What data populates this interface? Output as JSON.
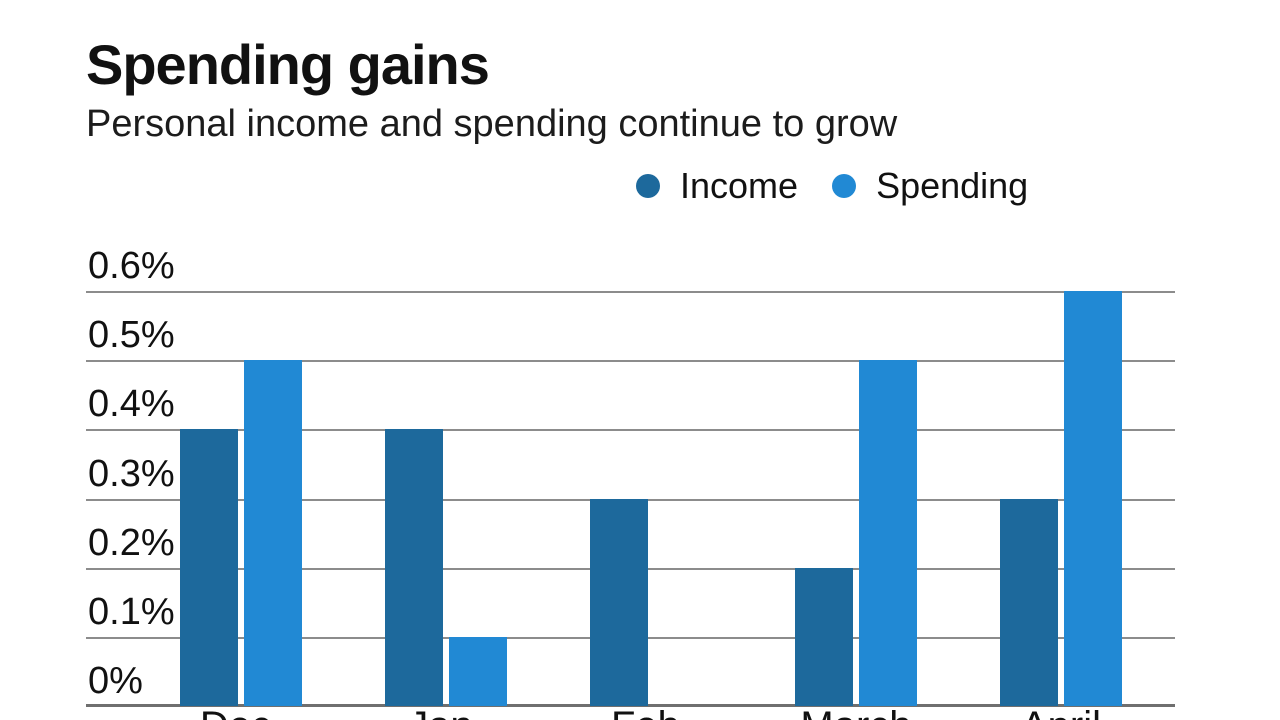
{
  "header": {
    "title": "Spending gains",
    "subtitle": "Personal income and spending continue to grow"
  },
  "legend": [
    {
      "label": "Income",
      "color": "#1d699c"
    },
    {
      "label": "Spending",
      "color": "#2189d4"
    }
  ],
  "colors": {
    "income": "#1d699c",
    "spending": "#2189d4",
    "gridline": "#8c8c8c",
    "axis_line": "#6f6f6f",
    "text": "#111111",
    "background": "#ffffff"
  },
  "chart_data": {
    "type": "bar",
    "title": "Spending gains",
    "subtitle": "Personal income and spending continue to grow",
    "categories": [
      "Dec.",
      "Jan.",
      "Feb.",
      "March",
      "April"
    ],
    "series": [
      {
        "name": "Income",
        "color": "#1d699c",
        "values": [
          0.4,
          0.4,
          0.3,
          0.2,
          0.3
        ]
      },
      {
        "name": "Spending",
        "color": "#2189d4",
        "values": [
          0.5,
          0.1,
          0.0,
          0.5,
          0.6
        ]
      }
    ],
    "unit": "%",
    "xlabel": "",
    "ylabel": "",
    "ylim": [
      0,
      0.6
    ],
    "y_ticks": [
      {
        "label": "0%",
        "value": 0.0
      },
      {
        "label": "0.1%",
        "value": 0.1
      },
      {
        "label": "0.2%",
        "value": 0.2
      },
      {
        "label": "0.3%",
        "value": 0.3
      },
      {
        "label": "0.4%",
        "value": 0.4
      },
      {
        "label": "0.5%",
        "value": 0.5
      },
      {
        "label": "0.6%",
        "value": 0.6
      }
    ],
    "grid": true,
    "legend_position": "top-right"
  }
}
